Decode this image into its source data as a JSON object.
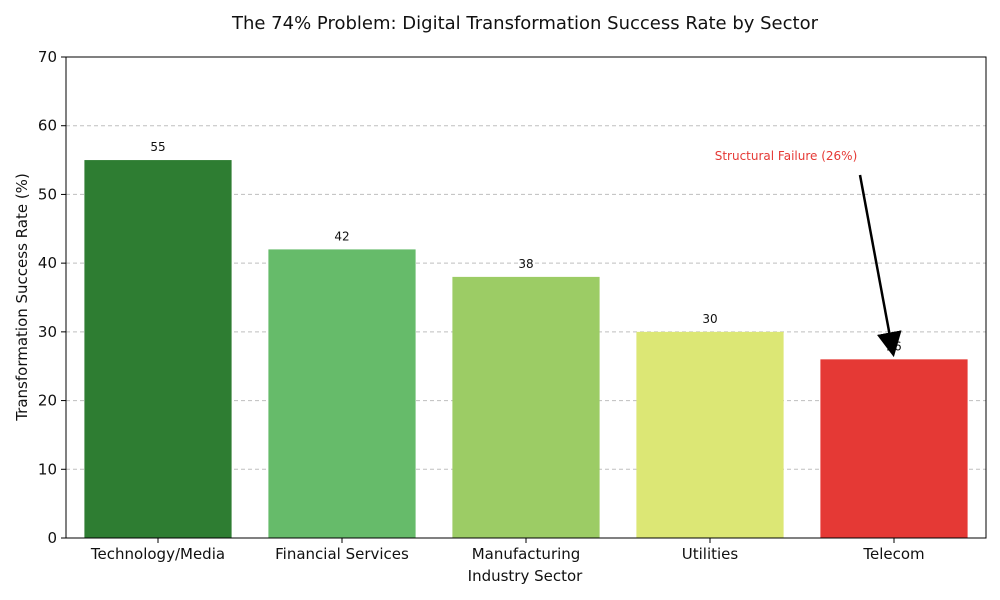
{
  "chart_data": {
    "type": "bar",
    "title": "The 74% Problem: Digital Transformation Success Rate by Sector",
    "xlabel": "Industry Sector",
    "ylabel": "Transformation Success Rate (%)",
    "categories": [
      "Technology/Media",
      "Financial Services",
      "Manufacturing",
      "Utilities",
      "Telecom"
    ],
    "values": [
      55,
      42,
      38,
      30,
      26
    ],
    "colors": [
      "#2e7d32",
      "#66bb6a",
      "#9ccc65",
      "#dce775",
      "#e53935"
    ],
    "ylim": [
      0,
      70
    ],
    "yticks": [
      0,
      10,
      20,
      30,
      40,
      50,
      60,
      70
    ],
    "grid": true,
    "annotation": {
      "text": "Structural Failure (26%)",
      "target_category": "Telecom",
      "target_value": 26,
      "color": "#e53935"
    }
  }
}
